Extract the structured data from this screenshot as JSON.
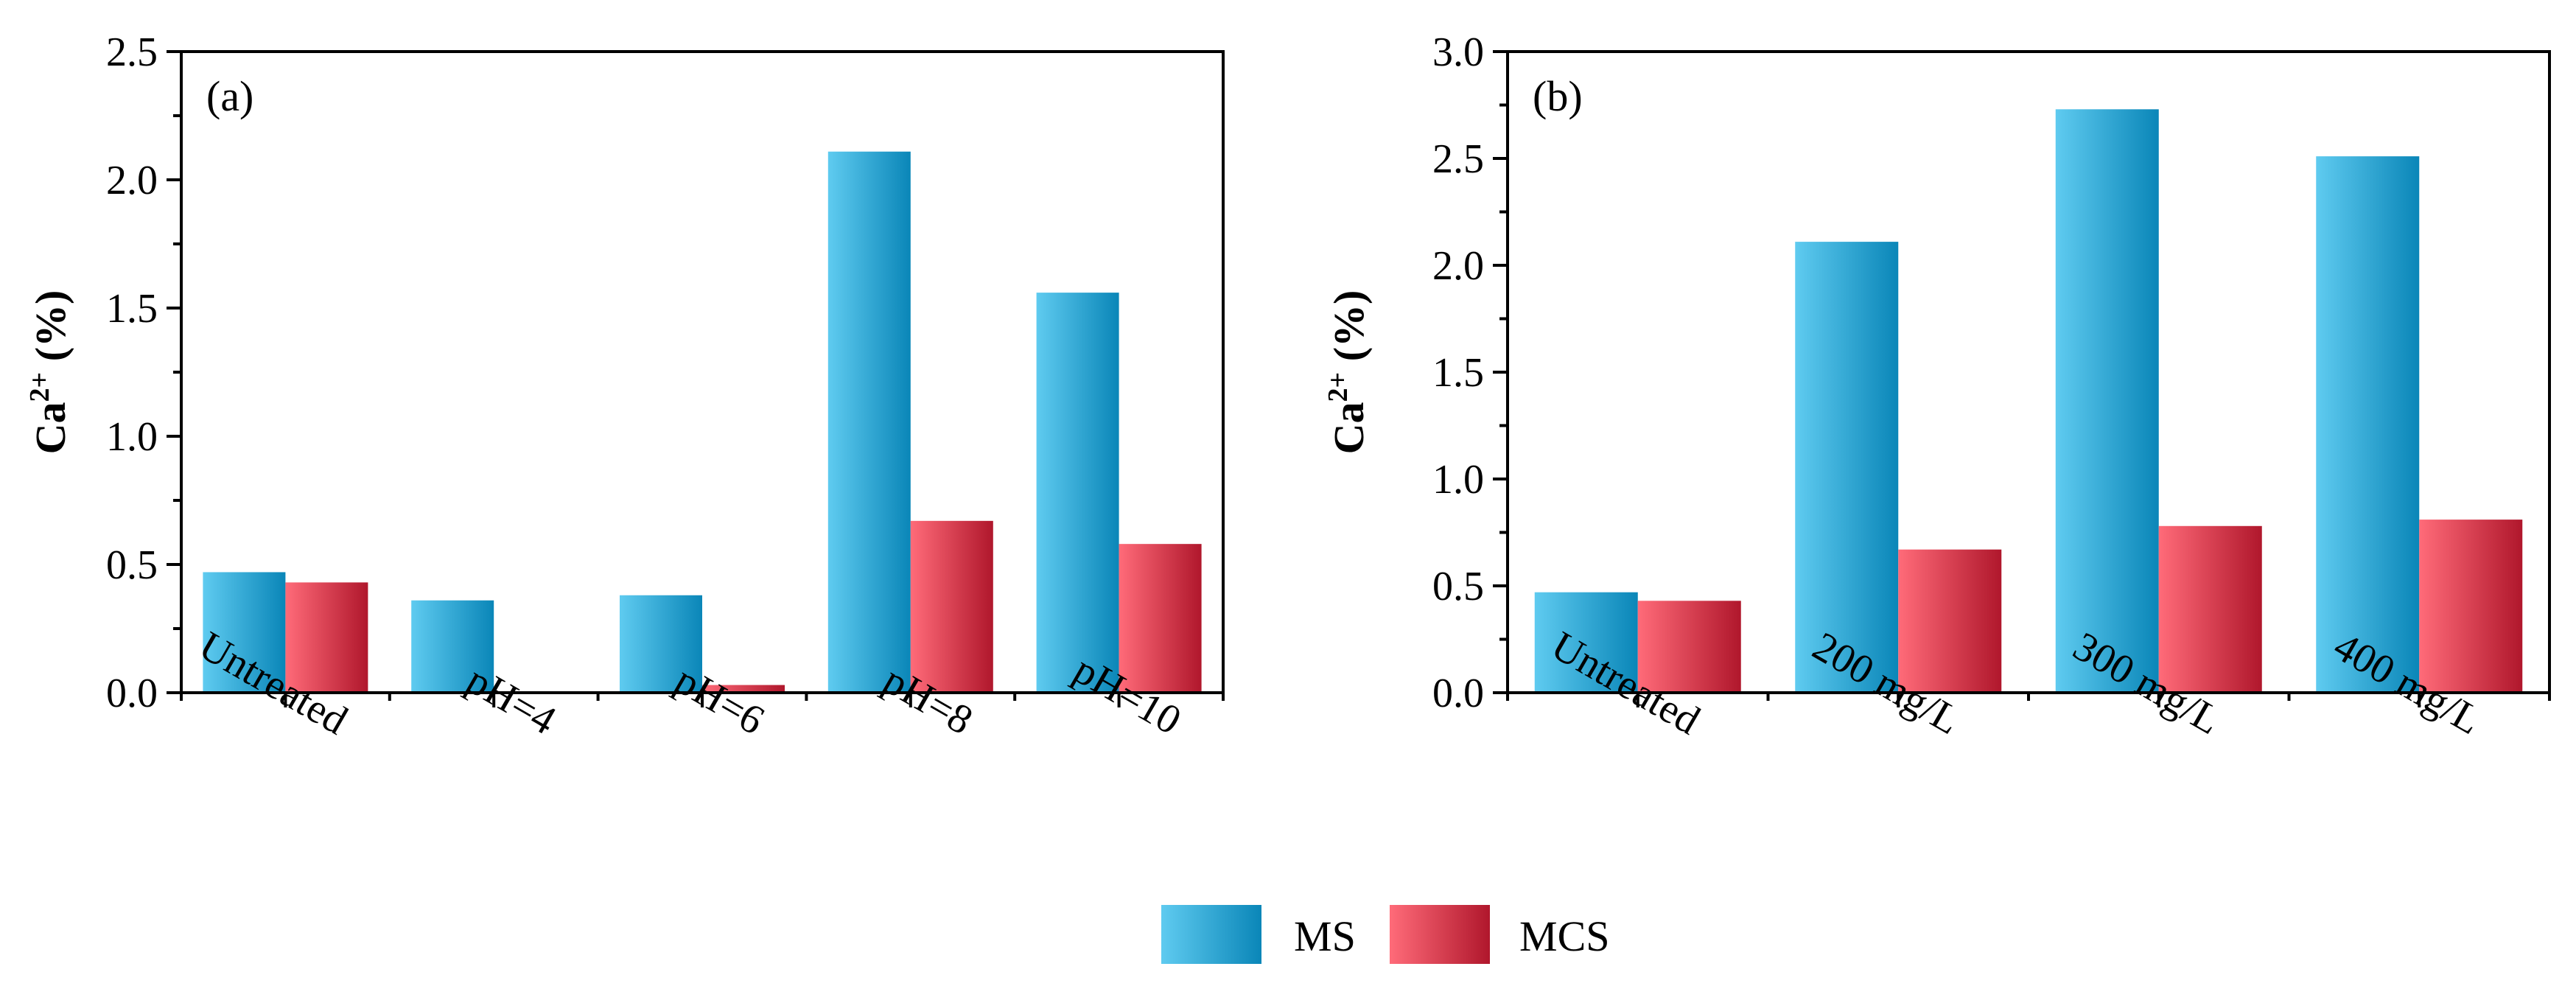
{
  "colors": {
    "MS_light": "#5fcbf0",
    "MS_dark": "#0a86b8",
    "MCS_light": "#ff6b79",
    "MCS_dark": "#b0172c"
  },
  "legend": {
    "items": [
      {
        "name": "MS",
        "color_key": "MS"
      },
      {
        "name": "MCS",
        "color_key": "MCS"
      }
    ]
  },
  "chart_data": [
    {
      "type": "bar",
      "panel_label": "(a)",
      "title": "",
      "xlabel": "",
      "ylabel_base": "Ca",
      "ylabel_sup": "2+",
      "ylabel_unit": " (%)",
      "ylim": [
        0,
        2.5
      ],
      "yticks": [
        "0.0",
        "0.5",
        "1.0",
        "1.5",
        "2.0",
        "2.5"
      ],
      "categories": [
        "Untreated",
        "pH=4",
        "pH=6",
        "pH=8",
        "pH=10"
      ],
      "series": [
        {
          "name": "MS",
          "values": [
            0.47,
            0.36,
            0.38,
            2.11,
            1.56
          ]
        },
        {
          "name": "MCS",
          "values": [
            0.43,
            0.0,
            0.03,
            0.67,
            0.58
          ]
        }
      ]
    },
    {
      "type": "bar",
      "panel_label": "(b)",
      "title": "",
      "xlabel": "",
      "ylabel_base": "Ca",
      "ylabel_sup": "2+",
      "ylabel_unit": " (%)",
      "ylim": [
        0,
        3.0
      ],
      "yticks": [
        "0.0",
        "0.5",
        "1.0",
        "1.5",
        "2.0",
        "2.5",
        "3.0"
      ],
      "categories": [
        "Untreated",
        "200 mg/L",
        "300 mg/L",
        "400 mg/L"
      ],
      "series": [
        {
          "name": "MS",
          "values": [
            0.47,
            2.11,
            2.73,
            2.51
          ]
        },
        {
          "name": "MCS",
          "values": [
            0.43,
            0.67,
            0.78,
            0.81
          ]
        }
      ]
    }
  ]
}
